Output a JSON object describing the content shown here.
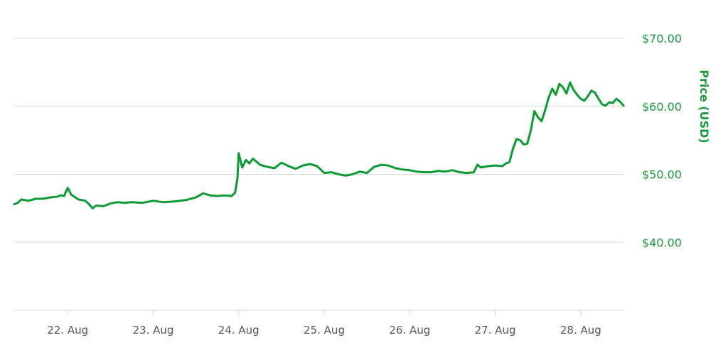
{
  "colors": {
    "line": "#0a9b32",
    "axis_text": "#1a9b3c",
    "grid": "#d8d8d8",
    "x_axis": "#ccd6eb",
    "tick_text": "#555555"
  },
  "chart_data": {
    "type": "line",
    "title": "",
    "xlabel": "",
    "ylabel": "Price (USD)",
    "ylim": [
      30,
      70
    ],
    "xlim": [
      "2021-08-21 09:00",
      "2021-08-28 12:00"
    ],
    "y_ticks": [
      {
        "value": 40,
        "label": "$40.00"
      },
      {
        "value": 50,
        "label": "$50.00"
      },
      {
        "value": 60,
        "label": "$60.00"
      },
      {
        "value": 70,
        "label": "$70.00"
      }
    ],
    "x_ticks": [
      {
        "value": "2021-08-22",
        "label": "22. Aug"
      },
      {
        "value": "2021-08-23",
        "label": "23. Aug"
      },
      {
        "value": "2021-08-24",
        "label": "24. Aug"
      },
      {
        "value": "2021-08-25",
        "label": "25. Aug"
      },
      {
        "value": "2021-08-26",
        "label": "26. Aug"
      },
      {
        "value": "2021-08-27",
        "label": "27. Aug"
      },
      {
        "value": "2021-08-28",
        "label": "28. Aug"
      }
    ],
    "grid": true,
    "legend": "none",
    "series": [
      {
        "x": [
          "2021-08-21 09:00",
          "2021-08-21 10:00",
          "2021-08-21 11:00",
          "2021-08-21 13:00",
          "2021-08-21 15:00",
          "2021-08-21 17:00",
          "2021-08-21 19:00",
          "2021-08-21 21:00",
          "2021-08-21 22:00",
          "2021-08-21 23:00",
          "2021-08-22 00:00",
          "2021-08-22 01:00",
          "2021-08-22 03:00",
          "2021-08-22 05:00",
          "2021-08-22 06:00",
          "2021-08-22 07:00",
          "2021-08-22 08:00",
          "2021-08-22 10:00",
          "2021-08-22 12:00",
          "2021-08-22 14:00",
          "2021-08-22 16:00",
          "2021-08-22 18:00",
          "2021-08-22 21:00",
          "2021-08-23 00:00",
          "2021-08-23 03:00",
          "2021-08-23 06:00",
          "2021-08-23 09:00",
          "2021-08-23 12:00",
          "2021-08-23 14:00",
          "2021-08-23 16:00",
          "2021-08-23 18:00",
          "2021-08-23 20:00",
          "2021-08-23 22:00",
          "2021-08-23 23:00",
          "2021-08-23 23:40",
          "2021-08-24 00:00",
          "2021-08-24 01:00",
          "2021-08-24 02:00",
          "2021-08-24 03:00",
          "2021-08-24 04:00",
          "2021-08-24 06:00",
          "2021-08-24 08:00",
          "2021-08-24 10:00",
          "2021-08-24 12:00",
          "2021-08-24 14:00",
          "2021-08-24 16:00",
          "2021-08-24 18:00",
          "2021-08-24 20:00",
          "2021-08-24 22:00",
          "2021-08-25 00:00",
          "2021-08-25 02:00",
          "2021-08-25 04:00",
          "2021-08-25 06:00",
          "2021-08-25 08:00",
          "2021-08-25 10:00",
          "2021-08-25 12:00",
          "2021-08-25 14:00",
          "2021-08-25 16:00",
          "2021-08-25 18:00",
          "2021-08-25 20:00",
          "2021-08-25 22:00",
          "2021-08-26 00:00",
          "2021-08-26 02:00",
          "2021-08-26 04:00",
          "2021-08-26 06:00",
          "2021-08-26 08:00",
          "2021-08-26 10:00",
          "2021-08-26 12:00",
          "2021-08-26 14:00",
          "2021-08-26 16:00",
          "2021-08-26 18:00",
          "2021-08-26 19:00",
          "2021-08-26 20:00",
          "2021-08-26 22:00",
          "2021-08-27 00:00",
          "2021-08-27 02:00",
          "2021-08-27 03:00",
          "2021-08-27 04:00",
          "2021-08-27 05:00",
          "2021-08-27 06:00",
          "2021-08-27 07:00",
          "2021-08-27 08:00",
          "2021-08-27 09:00",
          "2021-08-27 10:00",
          "2021-08-27 11:00",
          "2021-08-27 12:00",
          "2021-08-27 13:00",
          "2021-08-27 14:00",
          "2021-08-27 15:00",
          "2021-08-27 16:00",
          "2021-08-27 17:00",
          "2021-08-27 18:00",
          "2021-08-27 19:00",
          "2021-08-27 20:00",
          "2021-08-27 21:00",
          "2021-08-27 22:00",
          "2021-08-27 23:00",
          "2021-08-28 00:00",
          "2021-08-28 01:00",
          "2021-08-28 02:00",
          "2021-08-28 03:00",
          "2021-08-28 04:00",
          "2021-08-28 05:00",
          "2021-08-28 06:00",
          "2021-08-28 07:00",
          "2021-08-28 08:00",
          "2021-08-28 09:00",
          "2021-08-28 10:00",
          "2021-08-28 11:00",
          "2021-08-28 12:00"
        ],
        "y": [
          45.6,
          45.8,
          46.3,
          46.1,
          46.4,
          46.4,
          46.6,
          46.7,
          46.9,
          46.8,
          48.0,
          47.0,
          46.3,
          46.1,
          45.6,
          45.0,
          45.4,
          45.3,
          45.7,
          45.9,
          45.8,
          45.9,
          45.8,
          46.1,
          45.9,
          46.0,
          46.2,
          46.6,
          47.2,
          46.9,
          46.8,
          46.9,
          46.8,
          47.3,
          49.5,
          53.1,
          51.0,
          52.1,
          51.6,
          52.3,
          51.4,
          51.1,
          50.9,
          51.7,
          51.2,
          50.8,
          51.3,
          51.5,
          51.2,
          50.2,
          50.3,
          50.0,
          49.8,
          50.0,
          50.4,
          50.2,
          51.1,
          51.4,
          51.3,
          50.9,
          50.7,
          50.6,
          50.4,
          50.3,
          50.3,
          50.5,
          50.4,
          50.6,
          50.3,
          50.2,
          50.3,
          51.4,
          51.0,
          51.2,
          51.3,
          51.2,
          51.6,
          51.8,
          53.8,
          55.2,
          55.0,
          54.4,
          54.5,
          56.5,
          59.3,
          58.4,
          57.8,
          59.4,
          61.3,
          62.6,
          61.7,
          63.3,
          62.8,
          61.9,
          63.5,
          62.4,
          61.7,
          61.1,
          60.8,
          61.5,
          62.3,
          62.0,
          61.1,
          60.3,
          60.1,
          60.6,
          60.5,
          61.1,
          60.7,
          60.1
        ]
      }
    ]
  }
}
